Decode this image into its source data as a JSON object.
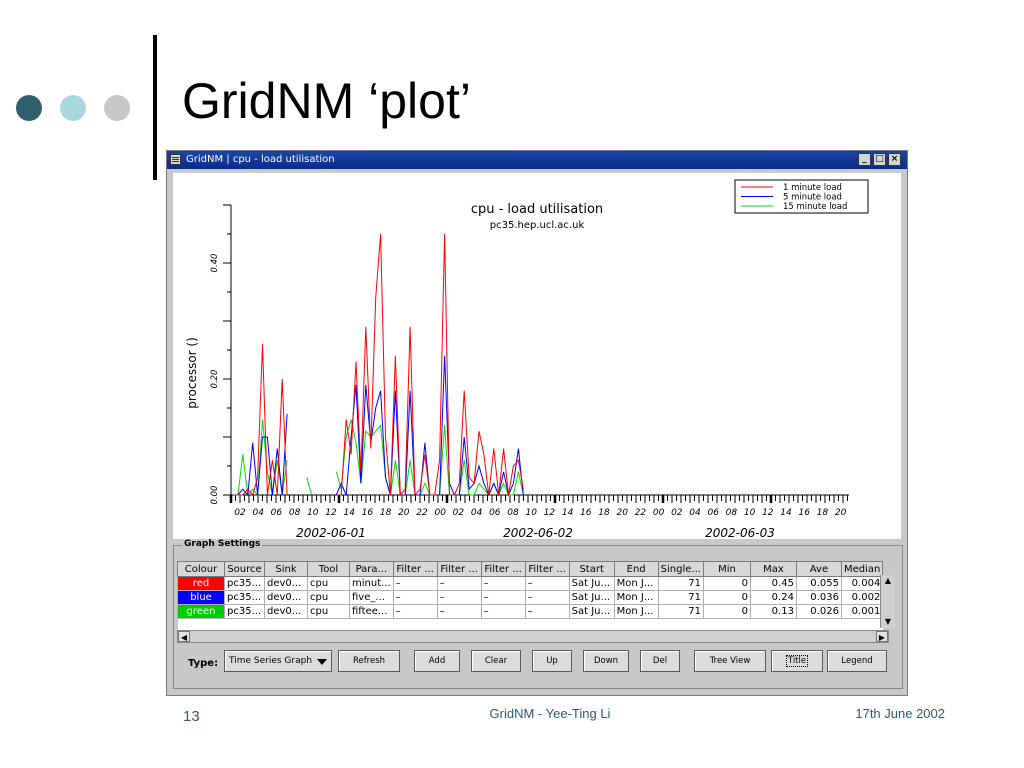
{
  "slide": {
    "title": "GridNM ‘plot’",
    "page_number": "13",
    "footer_center": "GridNM - Yee-Ting Li",
    "footer_right": "17th June 2002",
    "dot_colors": [
      "#2f5f6e",
      "#a9d7e0",
      "#c8c8c8"
    ]
  },
  "window": {
    "title": "GridNM | cpu - load utilisation",
    "controls": [
      "minimize-icon",
      "maximize-icon",
      "close-icon"
    ]
  },
  "chart_data": {
    "type": "line",
    "title": "cpu - load utilisation",
    "subtitle": "pc35.hep.ucl.ac.uk",
    "ylabel": "processor ()",
    "ylim": [
      0,
      0.5
    ],
    "y_ticks": [
      "0.00",
      "0.20",
      "0.40"
    ],
    "x_tick_labels": [
      "02",
      "04",
      "06",
      "08",
      "10",
      "12",
      "14",
      "16",
      "18",
      "20",
      "22",
      "00",
      "02",
      "04",
      "06",
      "08",
      "10",
      "12",
      "14",
      "16",
      "18",
      "20",
      "22",
      "00",
      "02",
      "04",
      "06",
      "08",
      "10",
      "12",
      "14",
      "16",
      "18",
      "20"
    ],
    "date_labels": [
      "2002-06-01",
      "2002-06-02",
      "2002-06-03"
    ],
    "legend_position": "top-right",
    "grid": false,
    "series": [
      {
        "name": "1 minute load",
        "color": "#ff0000",
        "values": [
          0,
          0,
          0,
          0.01,
          0,
          0.03,
          0.26,
          0,
          0.06,
          0,
          0.2,
          0,
          null,
          null,
          null,
          null,
          null,
          null,
          null,
          null,
          null,
          0,
          0,
          0.13,
          0.07,
          0.23,
          0.04,
          0.29,
          0.08,
          0.34,
          0.45,
          0.1,
          0,
          0.24,
          0,
          0.01,
          0.29,
          0,
          0.01,
          0.07,
          0,
          0,
          0.06,
          0.45,
          0,
          0,
          0.02,
          0.18,
          0.03,
          0.02,
          0.11,
          0.07,
          0,
          0.08,
          0,
          0.08,
          0,
          0.05,
          0.06,
          0.01
        ]
      },
      {
        "name": "5 minute load",
        "color": "#0000ff",
        "values": [
          0,
          0,
          0.01,
          0,
          0.09,
          0,
          0.1,
          0.1,
          0,
          0.08,
          0,
          0.14,
          null,
          null,
          null,
          null,
          null,
          null,
          null,
          null,
          null,
          0,
          0.02,
          0,
          0.1,
          0.19,
          0.02,
          0.19,
          0.09,
          0.15,
          0.18,
          0.03,
          0,
          0.18,
          0,
          0,
          0.18,
          0,
          0,
          0.09,
          0,
          0,
          0,
          0.24,
          0.02,
          0,
          0,
          0.1,
          0.01,
          0.02,
          0.05,
          0.02,
          0,
          0.02,
          0,
          0.04,
          0,
          0.02,
          0.08,
          0
        ]
      },
      {
        "name": "15 minute load",
        "color": "#00dd00",
        "values": [
          0,
          0,
          0.07,
          0,
          0.01,
          0,
          0.13,
          0.04,
          0,
          0.06,
          0,
          0.06,
          null,
          null,
          null,
          0.03,
          0,
          null,
          null,
          null,
          null,
          0.04,
          0.01,
          0.1,
          0.13,
          0.09,
          0.02,
          0.11,
          0.1,
          0.11,
          0.12,
          0.03,
          0,
          0.06,
          0,
          0,
          0.06,
          0,
          0,
          0.02,
          0,
          0,
          0,
          0.12,
          0,
          0,
          0,
          0.06,
          0,
          0,
          0.02,
          0.01,
          0,
          0.02,
          0,
          0.02,
          0,
          0,
          0.04,
          0
        ]
      }
    ]
  },
  "settings": {
    "label": "Graph Settings",
    "columns": [
      "Colour",
      "Source",
      "Sink",
      "Tool",
      "Para...",
      "Filter ...",
      "Filter ...",
      "Filter ...",
      "Filter ...",
      "Start",
      "End",
      "Single...",
      "Min",
      "Max",
      "Ave",
      "Median"
    ],
    "rows": [
      {
        "colour": "red",
        "colour_hex": "#ff0000",
        "cells": [
          "pc35...",
          "dev0...",
          "cpu",
          "minut...",
          "–",
          "–",
          "–",
          "–",
          "Sat Ju...",
          "Mon J...",
          "71",
          "0",
          "0.45",
          "0.055",
          "0.004"
        ]
      },
      {
        "colour": "blue",
        "colour_hex": "#0000ff",
        "cells": [
          "pc35...",
          "dev0...",
          "cpu",
          "five_...",
          "–",
          "–",
          "–",
          "–",
          "Sat Ju...",
          "Mon J...",
          "71",
          "0",
          "0.24",
          "0.036",
          "0.002"
        ]
      },
      {
        "colour": "green",
        "colour_hex": "#00cc00",
        "cells": [
          "pc35...",
          "dev0...",
          "cpu",
          "fiftee...",
          "–",
          "–",
          "–",
          "–",
          "Sat Ju...",
          "Mon J...",
          "71",
          "0",
          "0.13",
          "0.026",
          "0.001"
        ]
      }
    ],
    "type_label": "Type:",
    "type_value": "Time Series Graph",
    "buttons": [
      "Refresh",
      "Add",
      "Clear",
      "Up",
      "Down",
      "Del",
      "Tree View",
      "Title",
      "Legend"
    ]
  }
}
